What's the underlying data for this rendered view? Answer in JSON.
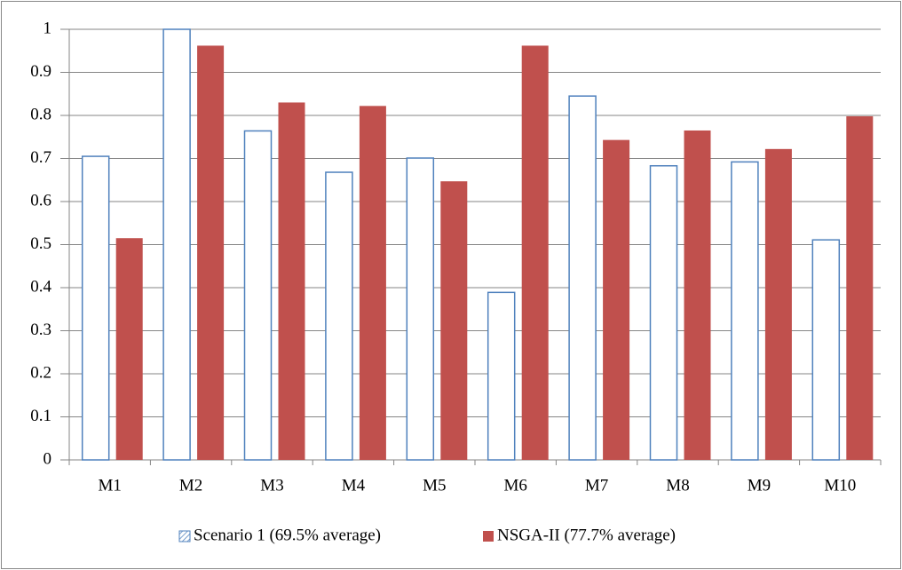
{
  "chart_data": {
    "type": "bar",
    "categories": [
      "M1",
      "M2",
      "M3",
      "M4",
      "M5",
      "M6",
      "M7",
      "M8",
      "M9",
      "M10"
    ],
    "series": [
      {
        "name": "Scenario 1 (69.5% average)",
        "color": "#4f81bd",
        "values": [
          0.705,
          1.0,
          0.764,
          0.668,
          0.701,
          0.389,
          0.845,
          0.683,
          0.692,
          0.511
        ]
      },
      {
        "name": "NSGA-II (77.7% average)",
        "color": "#c0504d",
        "values": [
          0.515,
          0.962,
          0.83,
          0.822,
          0.647,
          0.962,
          0.743,
          0.765,
          0.722,
          0.798
        ]
      }
    ],
    "ylim": [
      0,
      1
    ],
    "yticks": [
      0,
      0.1,
      0.2,
      0.3,
      0.4,
      0.5,
      0.6,
      0.7,
      0.8,
      0.9,
      1
    ],
    "grid": true,
    "legend": "bottom"
  }
}
